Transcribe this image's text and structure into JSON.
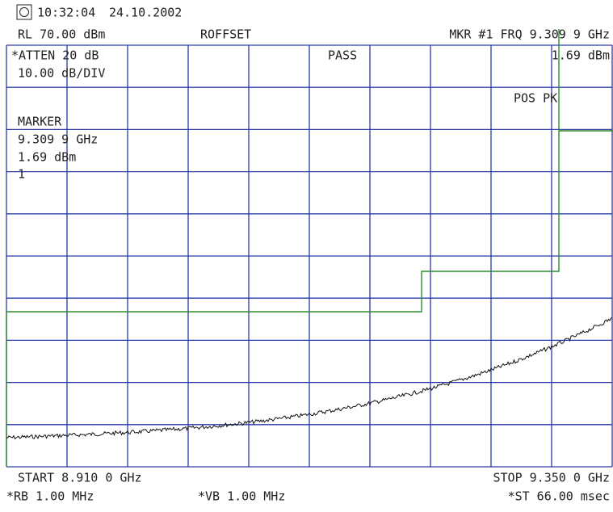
{
  "header": {
    "time": "10:32:04",
    "date": "24.10.2002"
  },
  "status": {
    "reference_level": "RL 70.00 dBm",
    "offset": "ROFFSET",
    "marker_frequency": "MKR #1 FRQ 9.309 9 GHz",
    "attenuation": "*ATTEN 20 dB",
    "scale": "10.00 dB/DIV",
    "limit_result": "PASS",
    "marker_amplitude": "1.69 dBm",
    "detector": "POS PK"
  },
  "marker_box": {
    "title": "MARKER",
    "frequency": "9.309 9 GHz",
    "amplitude": "1.69 dBm",
    "number": "1"
  },
  "footer": {
    "start": "START  8.910 0 GHz",
    "stop": "STOP 9.350 0 GHz",
    "resolution_bandwidth": "*RB 1.00 MHz",
    "video_bandwidth": "*VB 1.00 MHz",
    "sweep_time": "*ST 66.00 msec"
  }
}
